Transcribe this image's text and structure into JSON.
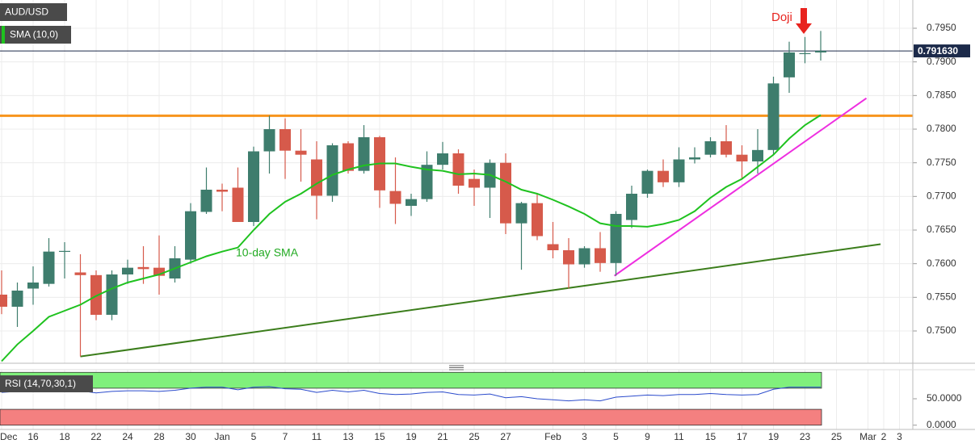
{
  "chart_data": {
    "type": "candlestick",
    "categories": [
      "Dec",
      null,
      "16",
      null,
      "18",
      null,
      "22",
      null,
      "24",
      null,
      "28",
      null,
      "30",
      null,
      "Jan",
      null,
      "5",
      null,
      "7",
      null,
      "11",
      null,
      "13",
      null,
      "15",
      null,
      "19",
      null,
      "21",
      null,
      "25",
      null,
      "27",
      null,
      null,
      "Feb",
      null,
      "3",
      null,
      "5",
      null,
      "9",
      null,
      "11",
      null,
      "15",
      null,
      "17",
      null,
      "19",
      null,
      "23",
      null,
      "25",
      null,
      "Mar",
      "2",
      "3"
    ],
    "series": [
      {
        "name": "AUD/USD",
        "up_color": "#3e7d6d",
        "down_color": "#d65a4b",
        "open": [
          0.7554,
          0.7536,
          0.7563,
          0.757,
          0.7618,
          0.7587,
          0.7583,
          0.7524,
          0.7584,
          0.7595,
          0.7594,
          0.7578,
          0.7606,
          0.7677,
          0.771,
          0.7713,
          0.7662,
          0.7767,
          0.78,
          0.7768,
          0.7755,
          0.7701,
          0.7779,
          0.7738,
          0.7788,
          0.7708,
          0.7686,
          0.7696,
          0.7747,
          0.7764,
          0.7726,
          0.7713,
          0.775,
          0.766,
          0.769,
          0.7629,
          0.762,
          0.7599,
          0.7623,
          0.7601,
          0.7665,
          0.7704,
          0.7738,
          0.7721,
          0.7755,
          0.7762,
          0.7782,
          0.7762,
          0.7752,
          0.7769,
          0.7877,
          0.7913,
          0.7914,
          null,
          null,
          null,
          null,
          null
        ],
        "high": [
          0.759,
          0.7572,
          0.7596,
          0.7638,
          0.7632,
          0.7614,
          0.759,
          0.759,
          0.7606,
          0.7626,
          0.7642,
          0.7626,
          0.769,
          0.7743,
          0.7719,
          0.7743,
          0.7774,
          0.782,
          0.7816,
          0.78,
          0.7782,
          0.7779,
          0.7782,
          0.7806,
          0.779,
          0.7758,
          0.7704,
          0.7767,
          0.7781,
          0.777,
          0.774,
          0.7755,
          0.7764,
          0.7692,
          0.7704,
          0.7662,
          0.7638,
          0.7626,
          0.7647,
          0.7678,
          0.7716,
          0.774,
          0.7755,
          0.7773,
          0.7773,
          0.7788,
          0.7806,
          0.7776,
          0.78,
          0.7878,
          0.793,
          0.7937,
          0.7946,
          null,
          null,
          null,
          null,
          null
        ],
        "low": [
          0.7525,
          0.7506,
          0.7539,
          0.7566,
          0.7578,
          0.7462,
          0.7516,
          0.7516,
          0.757,
          0.757,
          0.7554,
          0.7572,
          0.76,
          0.7674,
          0.7678,
          0.7662,
          0.7656,
          0.7734,
          0.7726,
          0.7722,
          0.7666,
          0.7692,
          0.7734,
          0.7734,
          0.7683,
          0.7659,
          0.7671,
          0.7692,
          0.774,
          0.7704,
          0.7686,
          0.7668,
          0.7644,
          0.7591,
          0.7635,
          0.7608,
          0.7563,
          0.7594,
          0.7588,
          0.7582,
          0.7653,
          0.7698,
          0.7714,
          0.7714,
          0.7749,
          0.7758,
          0.7758,
          0.7726,
          0.7734,
          0.7762,
          0.7854,
          0.7898,
          0.7902,
          null,
          null,
          null,
          null,
          null
        ],
        "close": [
          0.7536,
          0.756,
          0.7572,
          0.7618,
          0.7619,
          0.7583,
          0.7524,
          0.7584,
          0.7594,
          0.7592,
          0.7582,
          0.7608,
          0.7678,
          0.771,
          0.7707,
          0.7662,
          0.7767,
          0.78,
          0.7768,
          0.7762,
          0.7701,
          0.7776,
          0.7738,
          0.7788,
          0.7709,
          0.7689,
          0.7696,
          0.7747,
          0.7764,
          0.7716,
          0.7713,
          0.775,
          0.766,
          0.769,
          0.7641,
          0.762,
          0.7599,
          0.7623,
          0.7601,
          0.7674,
          0.7704,
          0.7738,
          0.7721,
          0.7755,
          0.7758,
          0.7782,
          0.7762,
          0.7752,
          0.7769,
          0.7868,
          0.7914,
          0.7913,
          0.79163,
          null,
          null,
          null,
          null,
          null
        ]
      },
      {
        "name": "SMA (10,0)",
        "color": "#1fc21f",
        "values": [
          0.7455,
          0.748,
          0.75,
          0.7521,
          0.753,
          0.7539,
          0.7552,
          0.7563,
          0.7572,
          0.7578,
          0.7584,
          0.7593,
          0.7602,
          0.7611,
          0.7618,
          0.7624,
          0.765,
          0.7674,
          0.7692,
          0.7704,
          0.7719,
          0.7732,
          0.774,
          0.7746,
          0.7749,
          0.7749,
          0.7744,
          0.774,
          0.7738,
          0.7733,
          0.7734,
          0.7732,
          0.7722,
          0.771,
          0.7704,
          0.7695,
          0.7685,
          0.7674,
          0.766,
          0.7656,
          0.7656,
          0.7655,
          0.7659,
          0.7665,
          0.7678,
          0.7698,
          0.7714,
          0.7726,
          0.7744,
          0.7762,
          0.7786,
          0.7806,
          0.7821,
          null,
          null,
          null,
          null,
          null
        ]
      }
    ],
    "ylim": [
      0.7452,
      0.7992
    ],
    "yticks": [
      {
        "value": 0.795,
        "label": "0.7950"
      },
      {
        "value": 0.79,
        "label": "0.7900"
      },
      {
        "value": 0.785,
        "label": "0.7850"
      },
      {
        "value": 0.78,
        "label": "0.7800"
      },
      {
        "value": 0.775,
        "label": "0.7750"
      },
      {
        "value": 0.77,
        "label": "0.7700"
      },
      {
        "value": 0.765,
        "label": "0.7650"
      },
      {
        "value": 0.76,
        "label": "0.7600"
      },
      {
        "value": 0.755,
        "label": "0.7550"
      },
      {
        "value": 0.75,
        "label": "0.7500"
      }
    ],
    "grid": true,
    "last_price": {
      "value": 0.79163,
      "label": "0.791630",
      "color": "#1c2a4a"
    },
    "levels": [
      {
        "value": 0.782,
        "color": "#f7941d"
      }
    ],
    "trendlines": [
      {
        "color": "#3b7d1b",
        "x": [
          5,
          55.8
        ],
        "values": [
          0.7462,
          0.7629
        ]
      },
      {
        "color": "#ee2ee0",
        "x": [
          38.9,
          54.9
        ],
        "values": [
          0.7582,
          0.7846
        ]
      }
    ],
    "annotations": [
      {
        "text": "Doji",
        "color": "#e8231e"
      },
      {
        "text": "10-day SMA",
        "color": "#22aa22"
      }
    ],
    "rsi": {
      "name": "RSI (14,70,30,1)",
      "color": "#2b4bcc",
      "values": [
        62,
        64,
        65,
        68,
        67,
        65,
        61,
        64,
        65,
        65,
        64,
        66,
        70,
        72,
        72,
        67,
        72,
        73,
        69,
        68,
        62,
        66,
        63,
        66,
        60,
        58,
        59,
        62,
        63,
        58,
        57,
        59,
        52,
        54,
        50,
        48,
        46,
        48,
        46,
        53,
        55,
        57,
        56,
        58,
        58,
        60,
        58,
        57,
        58,
        68,
        72,
        72,
        72,
        null,
        null,
        null,
        null,
        null
      ],
      "ylim": [
        -5,
        105
      ],
      "yticks": [
        {
          "value": 50,
          "label": "50.0000"
        },
        {
          "value": 0,
          "label": "0.0000"
        }
      ],
      "bands": [
        {
          "range": [
            70,
            100
          ],
          "color": "#80f07c"
        },
        {
          "range": [
            0,
            30
          ],
          "color": "#f48080"
        }
      ]
    }
  }
}
